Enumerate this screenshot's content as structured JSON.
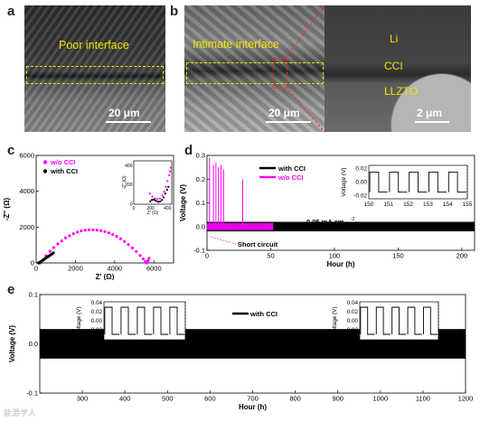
{
  "panels": {
    "a": {
      "label": "a",
      "interface_text": "Poor interface",
      "scale": "20 μm"
    },
    "b": {
      "label": "b",
      "interface_text": "Intimate interface",
      "scale_left": "20 μm",
      "scale_right": "2 μm",
      "layers": [
        "Li",
        "CCI",
        "LLZTO"
      ]
    },
    "c": {
      "label": "c"
    },
    "d": {
      "label": "d",
      "current_note": "0.05 mA cm",
      "current_exp": "-2",
      "short_circuit": "Short circuit"
    },
    "e": {
      "label": "e",
      "current_note": "0.1 mA cm",
      "current_exp": "-2"
    }
  },
  "watermark": "能源学人",
  "chart_data": [
    {
      "id": "c",
      "type": "scatter",
      "xlabel": "Z' (Ω)",
      "ylabel": "-Z'' (Ω)",
      "xlim": [
        0,
        7000
      ],
      "ylim": [
        0,
        6000
      ],
      "xticks": [
        0,
        2000,
        4000,
        6000
      ],
      "yticks": [
        0,
        2000,
        4000,
        6000
      ],
      "series": [
        {
          "name": "w/o CCI",
          "color": "#ff00ff",
          "points": [
            [
              200,
              0
            ],
            [
              350,
              150
            ],
            [
              500,
              400
            ],
            [
              700,
              650
            ],
            [
              900,
              860
            ],
            [
              1100,
              1060
            ],
            [
              1300,
              1230
            ],
            [
              1500,
              1400
            ],
            [
              1700,
              1520
            ],
            [
              1900,
              1630
            ],
            [
              2100,
              1720
            ],
            [
              2300,
              1790
            ],
            [
              2500,
              1830
            ],
            [
              2700,
              1850
            ],
            [
              2900,
              1850
            ],
            [
              3100,
              1830
            ],
            [
              3300,
              1800
            ],
            [
              3500,
              1750
            ],
            [
              3700,
              1680
            ],
            [
              3900,
              1590
            ],
            [
              4100,
              1480
            ],
            [
              4300,
              1350
            ],
            [
              4500,
              1200
            ],
            [
              4700,
              1030
            ],
            [
              4900,
              840
            ],
            [
              5100,
              640
            ],
            [
              5300,
              420
            ],
            [
              5450,
              230
            ],
            [
              5560,
              80
            ],
            [
              5620,
              0
            ],
            [
              5700,
              120
            ],
            [
              5750,
              260
            ]
          ]
        },
        {
          "name": "with CCI",
          "color": "#000000",
          "points": [
            [
              120,
              0
            ],
            [
              180,
              30
            ],
            [
              250,
              80
            ],
            [
              320,
              140
            ],
            [
              400,
              200
            ],
            [
              480,
              260
            ],
            [
              560,
              320
            ],
            [
              640,
              380
            ],
            [
              720,
              440
            ],
            [
              800,
              500
            ],
            [
              880,
              560
            ]
          ]
        }
      ],
      "inset": {
        "xlabel": "Z' (Ω)",
        "ylabel": "-Z'' (Ω)",
        "xlim": [
          0,
          450
        ],
        "ylim": [
          0,
          450
        ],
        "xticks": [
          0,
          200,
          400
        ],
        "yticks": [
          0,
          200,
          400
        ],
        "series": [
          {
            "name": "w/o CCI",
            "color": "#ff00ff",
            "points": [
              [
                190,
                110
              ],
              [
                220,
                80
              ],
              [
                250,
                60
              ],
              [
                280,
                55
              ],
              [
                310,
                60
              ],
              [
                340,
                90
              ],
              [
                360,
                130
              ],
              [
                380,
                180
              ],
              [
                400,
                240
              ],
              [
                420,
                300
              ],
              [
                430,
                340
              ],
              [
                440,
                380
              ]
            ]
          },
          {
            "name": "with CCI",
            "color": "#000000",
            "points": [
              [
                195,
                30
              ],
              [
                215,
                45
              ],
              [
                235,
                48
              ],
              [
                255,
                40
              ],
              [
                275,
                30
              ],
              [
                295,
                25
              ],
              [
                315,
                30
              ],
              [
                335,
                45
              ],
              [
                355,
                70
              ],
              [
                375,
                110
              ],
              [
                395,
                150
              ],
              [
                410,
                180
              ]
            ]
          }
        ]
      }
    },
    {
      "id": "d",
      "type": "line",
      "xlabel": "Hour (h)",
      "ylabel": "Voltage (V)",
      "xlim": [
        0,
        210
      ],
      "ylim": [
        -0.1,
        0.3
      ],
      "xticks": [
        0,
        50,
        100,
        150,
        200
      ],
      "yticks": [
        -0.1,
        0.0,
        0.1,
        0.2,
        0.3
      ],
      "series": [
        {
          "name": "with CCI",
          "color": "#000000",
          "amplitude": 0.02,
          "x_range": [
            0,
            210
          ]
        },
        {
          "name": "w/o CCI",
          "color": "#ff00ff",
          "amplitude": 0.015,
          "x_range": [
            0,
            52
          ],
          "spikes": [
            [
              2,
              0.29
            ],
            [
              5,
              0.26
            ],
            [
              7,
              0.27
            ],
            [
              9,
              0.25
            ],
            [
              11,
              0.26
            ],
            [
              13,
              0.24
            ],
            [
              28,
              0.2
            ]
          ]
        }
      ],
      "inset": {
        "xlabel": "",
        "ylabel": "Voltage (V)",
        "xlim": [
          150,
          155
        ],
        "ylim": [
          -0.02,
          0.02
        ],
        "xticks": [
          150,
          151,
          152,
          153,
          154,
          155
        ],
        "yticks": [
          -0.02,
          0.0,
          0.02
        ],
        "square_wave_amplitude": 0.015,
        "period_h": 1
      }
    },
    {
      "id": "e",
      "type": "line",
      "xlabel": "Hour (h)",
      "ylabel": "Voltage (V)",
      "xlim": [
        200,
        1200
      ],
      "ylim": [
        -0.1,
        0.1
      ],
      "xticks": [
        300,
        400,
        500,
        600,
        700,
        800,
        900,
        1000,
        1100,
        1200
      ],
      "yticks": [
        -0.1,
        0.0,
        0.1
      ],
      "series": [
        {
          "name": "with CCI",
          "color": "#000000",
          "amplitude": 0.03
        }
      ],
      "insets": [
        {
          "xlim": [
            300,
            305
          ],
          "xticks": [
            300,
            301,
            302,
            303,
            304,
            305
          ],
          "xlabel": "Hour (h)",
          "ylabel": "Voltage (V)",
          "ylim": [
            -0.04,
            0.04
          ],
          "yticks": [
            -0.04,
            -0.02,
            0.0,
            0.02,
            0.04
          ],
          "amplitude": 0.03
        },
        {
          "xlim": [
            1100,
            1105
          ],
          "xticks": [
            1100,
            1101,
            1102,
            1103,
            1104,
            1105
          ],
          "xlabel": "Hour (h)",
          "ylabel": "Voltage (V)",
          "ylim": [
            -0.04,
            0.04
          ],
          "yticks": [
            -0.04,
            -0.02,
            0.0,
            0.02,
            0.04
          ],
          "amplitude": 0.03
        }
      ]
    }
  ]
}
